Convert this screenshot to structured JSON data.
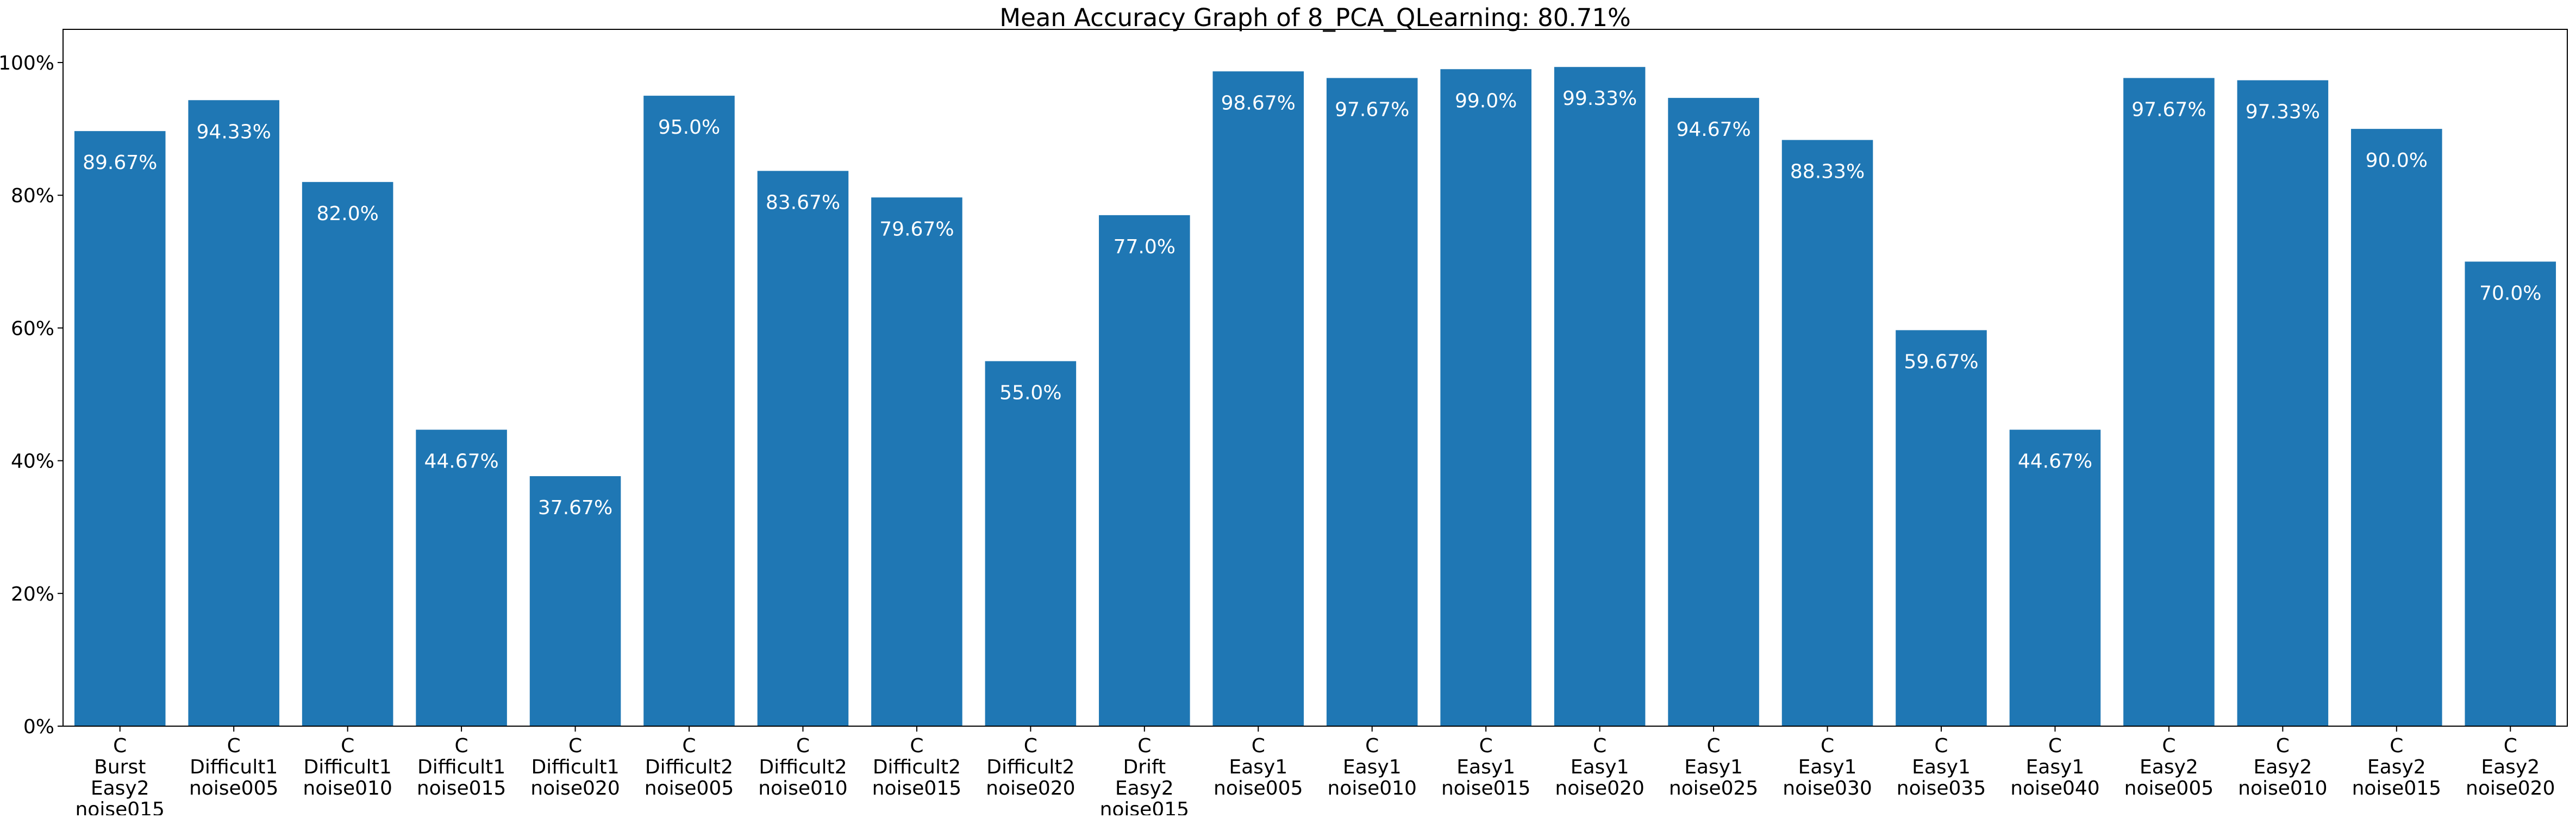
{
  "chart_data": {
    "type": "bar",
    "title": "Mean Accuracy Graph of 8_PCA_QLearning: 80.71%",
    "xlabel": "",
    "ylabel": "",
    "ylim": [
      0,
      105
    ],
    "grid": false,
    "bar_color": "#1f77b4",
    "label_color": "#ffffff",
    "yticks": [
      0,
      20,
      40,
      60,
      80,
      100
    ],
    "ytick_labels": [
      "0%",
      "20%",
      "40%",
      "60%",
      "80%",
      "100%"
    ],
    "categories": [
      [
        "C",
        "Burst",
        "Easy2",
        "noise015"
      ],
      [
        "C",
        "Difficult1",
        "noise005"
      ],
      [
        "C",
        "Difficult1",
        "noise010"
      ],
      [
        "C",
        "Difficult1",
        "noise015"
      ],
      [
        "C",
        "Difficult1",
        "noise020"
      ],
      [
        "C",
        "Difficult2",
        "noise005"
      ],
      [
        "C",
        "Difficult2",
        "noise010"
      ],
      [
        "C",
        "Difficult2",
        "noise015"
      ],
      [
        "C",
        "Difficult2",
        "noise020"
      ],
      [
        "C",
        "Drift",
        "Easy2",
        "noise015"
      ],
      [
        "C",
        "Easy1",
        "noise005"
      ],
      [
        "C",
        "Easy1",
        "noise010"
      ],
      [
        "C",
        "Easy1",
        "noise015"
      ],
      [
        "C",
        "Easy1",
        "noise020"
      ],
      [
        "C",
        "Easy1",
        "noise025"
      ],
      [
        "C",
        "Easy1",
        "noise030"
      ],
      [
        "C",
        "Easy1",
        "noise035"
      ],
      [
        "C",
        "Easy1",
        "noise040"
      ],
      [
        "C",
        "Easy2",
        "noise005"
      ],
      [
        "C",
        "Easy2",
        "noise010"
      ],
      [
        "C",
        "Easy2",
        "noise015"
      ],
      [
        "C",
        "Easy2",
        "noise020"
      ]
    ],
    "values": [
      89.67,
      94.33,
      82.0,
      44.67,
      37.67,
      95.0,
      83.67,
      79.67,
      55.0,
      77.0,
      98.67,
      97.67,
      99.0,
      99.33,
      94.67,
      88.33,
      59.67,
      44.67,
      97.67,
      97.33,
      90.0,
      70.0
    ],
    "data_labels": [
      "89.67%",
      "94.33%",
      "82.0%",
      "44.67%",
      "37.67%",
      "95.0%",
      "83.67%",
      "79.67%",
      "55.0%",
      "77.0%",
      "98.67%",
      "97.67%",
      "99.0%",
      "99.33%",
      "94.67%",
      "88.33%",
      "59.67%",
      "44.67%",
      "97.67%",
      "97.33%",
      "90.0%",
      "70.0%"
    ]
  }
}
